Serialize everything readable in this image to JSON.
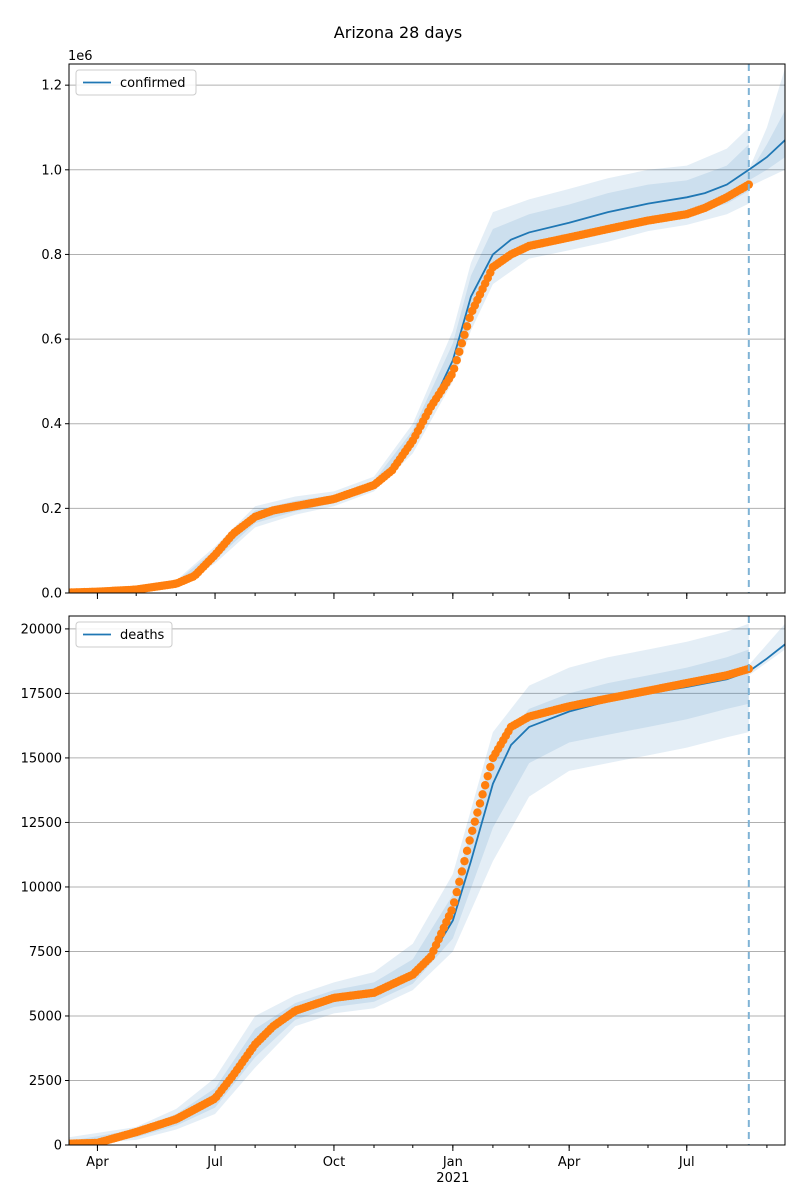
{
  "figure": {
    "title": "Arizona 28 days"
  },
  "colors": {
    "model": "#1f77b4",
    "observed": "#ff7f0e",
    "band": "#1f77b4",
    "grid": "#b0b0b0",
    "forecast_line": "#7fb3d5"
  },
  "x_axis": {
    "range": [
      "2020-03-10",
      "2021-09-15"
    ],
    "major_ticks": [
      {
        "date": "2020-04-01",
        "label": "Apr"
      },
      {
        "date": "2020-07-01",
        "label": "Jul"
      },
      {
        "date": "2020-10-01",
        "label": "Oct"
      },
      {
        "date": "2021-01-01",
        "label": "Jan"
      },
      {
        "date": "2021-04-01",
        "label": "Apr"
      },
      {
        "date": "2021-07-01",
        "label": "Jul"
      }
    ],
    "year_label": {
      "date": "2021-01-01",
      "label": "2021"
    },
    "forecast_start": "2021-08-18"
  },
  "chart_data": [
    {
      "type": "line",
      "title": "Arizona 28 days",
      "legend": "top-left",
      "grid": "y",
      "offset_label": "1e6",
      "ylim": [
        0,
        1.25
      ],
      "yticks": [
        0,
        0.2,
        0.4,
        0.6,
        0.8,
        1.0,
        1.2
      ],
      "ytick_labels": [
        "0.0",
        "0.2",
        "0.4",
        "0.6",
        "0.8",
        "1.0",
        "1.2"
      ],
      "series": [
        {
          "name": "confirmed",
          "role": "model",
          "x": [
            "2020-03-10",
            "2020-04-01",
            "2020-05-01",
            "2020-06-01",
            "2020-06-15",
            "2020-07-01",
            "2020-07-15",
            "2020-08-01",
            "2020-08-15",
            "2020-09-01",
            "2020-10-01",
            "2020-11-01",
            "2020-11-15",
            "2020-12-01",
            "2020-12-15",
            "2021-01-01",
            "2021-01-15",
            "2021-02-01",
            "2021-02-15",
            "2021-03-01",
            "2021-04-01",
            "2021-05-01",
            "2021-06-01",
            "2021-07-01",
            "2021-07-15",
            "2021-08-01",
            "2021-08-18",
            "2021-09-01",
            "2021-09-15"
          ],
          "y": [
            0.001,
            0.003,
            0.008,
            0.022,
            0.04,
            0.09,
            0.14,
            0.18,
            0.195,
            0.205,
            0.222,
            0.255,
            0.29,
            0.36,
            0.44,
            0.55,
            0.7,
            0.8,
            0.835,
            0.852,
            0.875,
            0.9,
            0.92,
            0.935,
            0.945,
            0.965,
            1.0,
            1.03,
            1.07
          ]
        },
        {
          "name": "",
          "role": "observed",
          "x": [
            "2020-03-10",
            "2020-04-01",
            "2020-05-01",
            "2020-06-01",
            "2020-06-15",
            "2020-07-01",
            "2020-07-15",
            "2020-08-01",
            "2020-08-15",
            "2020-09-01",
            "2020-10-01",
            "2020-11-01",
            "2020-11-15",
            "2020-12-01",
            "2020-12-15",
            "2021-01-01",
            "2021-01-15",
            "2021-02-01",
            "2021-02-15",
            "2021-03-01",
            "2021-04-01",
            "2021-05-01",
            "2021-06-01",
            "2021-07-01",
            "2021-07-15",
            "2021-08-01",
            "2021-08-18"
          ],
          "y": [
            0.001,
            0.003,
            0.008,
            0.022,
            0.04,
            0.09,
            0.14,
            0.18,
            0.195,
            0.205,
            0.222,
            0.255,
            0.29,
            0.36,
            0.44,
            0.52,
            0.66,
            0.77,
            0.8,
            0.82,
            0.84,
            0.86,
            0.88,
            0.895,
            0.91,
            0.935,
            0.965
          ]
        }
      ],
      "bands": [
        {
          "x": [
            "2020-06-01",
            "2020-07-01",
            "2020-08-01",
            "2020-09-01",
            "2020-10-01",
            "2020-11-01",
            "2020-12-01",
            "2021-01-01",
            "2021-01-15",
            "2021-02-01",
            "2021-03-01",
            "2021-04-01",
            "2021-05-01",
            "2021-06-01",
            "2021-07-01",
            "2021-08-01",
            "2021-08-18"
          ],
          "lower": [
            0.015,
            0.07,
            0.155,
            0.185,
            0.205,
            0.24,
            0.33,
            0.5,
            0.62,
            0.73,
            0.79,
            0.81,
            0.83,
            0.855,
            0.87,
            0.895,
            0.92
          ],
          "upper": [
            0.03,
            0.11,
            0.205,
            0.228,
            0.24,
            0.275,
            0.4,
            0.62,
            0.78,
            0.9,
            0.93,
            0.955,
            0.98,
            1.0,
            1.01,
            1.05,
            1.1
          ]
        },
        {
          "x": [
            "2020-06-01",
            "2020-07-01",
            "2020-08-01",
            "2020-09-01",
            "2020-10-01",
            "2020-11-01",
            "2020-12-01",
            "2021-01-01",
            "2021-01-15",
            "2021-02-01",
            "2021-03-01",
            "2021-04-01",
            "2021-05-01",
            "2021-06-01",
            "2021-07-01",
            "2021-08-01",
            "2021-08-18"
          ],
          "lower": [
            0.018,
            0.078,
            0.165,
            0.193,
            0.212,
            0.247,
            0.345,
            0.52,
            0.65,
            0.76,
            0.815,
            0.835,
            0.86,
            0.88,
            0.895,
            0.92,
            0.95
          ],
          "upper": [
            0.027,
            0.102,
            0.195,
            0.218,
            0.232,
            0.265,
            0.385,
            0.59,
            0.75,
            0.86,
            0.895,
            0.918,
            0.945,
            0.965,
            0.975,
            1.01,
            1.06
          ]
        }
      ],
      "forecast_bands": [
        {
          "x": [
            "2021-08-18",
            "2021-09-01",
            "2021-09-15"
          ],
          "lower": [
            0.96,
            0.98,
            1.0
          ],
          "upper": [
            1.0,
            1.1,
            1.24
          ]
        },
        {
          "x": [
            "2021-08-18",
            "2021-09-01",
            "2021-09-15"
          ],
          "lower": [
            0.975,
            1.0,
            1.03
          ],
          "upper": [
            0.99,
            1.06,
            1.14
          ]
        }
      ]
    },
    {
      "type": "line",
      "legend": "top-left",
      "grid": "y",
      "ylim": [
        0,
        20500
      ],
      "yticks": [
        0,
        2500,
        5000,
        7500,
        10000,
        12500,
        15000,
        17500,
        20000
      ],
      "ytick_labels": [
        "0",
        "2500",
        "5000",
        "7500",
        "10000",
        "12500",
        "15000",
        "17500",
        "20000"
      ],
      "series": [
        {
          "name": "deaths",
          "role": "model",
          "x": [
            "2020-03-10",
            "2020-04-01",
            "2020-05-01",
            "2020-06-01",
            "2020-07-01",
            "2020-07-15",
            "2020-08-01",
            "2020-08-15",
            "2020-09-01",
            "2020-10-01",
            "2020-11-01",
            "2020-12-01",
            "2020-12-15",
            "2021-01-01",
            "2021-01-15",
            "2021-02-01",
            "2021-02-15",
            "2021-03-01",
            "2021-04-01",
            "2021-05-01",
            "2021-06-01",
            "2021-07-01",
            "2021-08-01",
            "2021-08-18",
            "2021-09-01",
            "2021-09-15"
          ],
          "y": [
            50,
            80,
            500,
            1000,
            1800,
            2700,
            3900,
            4600,
            5200,
            5700,
            5900,
            6600,
            7300,
            8700,
            11000,
            14000,
            15500,
            16200,
            16800,
            17200,
            17500,
            17750,
            18050,
            18350,
            18850,
            19400
          ]
        },
        {
          "name": "",
          "role": "observed",
          "x": [
            "2020-03-10",
            "2020-04-01",
            "2020-05-01",
            "2020-06-01",
            "2020-07-01",
            "2020-07-15",
            "2020-08-01",
            "2020-08-15",
            "2020-09-01",
            "2020-10-01",
            "2020-11-01",
            "2020-12-01",
            "2020-12-15",
            "2021-01-01",
            "2021-01-15",
            "2021-02-01",
            "2021-02-15",
            "2021-03-01",
            "2021-04-01",
            "2021-05-01",
            "2021-06-01",
            "2021-07-01",
            "2021-08-01",
            "2021-08-18"
          ],
          "y": [
            50,
            80,
            500,
            1000,
            1800,
            2700,
            3900,
            4600,
            5200,
            5700,
            5900,
            6600,
            7300,
            9200,
            12000,
            15000,
            16200,
            16600,
            17000,
            17300,
            17600,
            17900,
            18200,
            18450
          ]
        }
      ],
      "bands": [
        {
          "x": [
            "2020-03-10",
            "2020-05-01",
            "2020-06-01",
            "2020-07-01",
            "2020-08-01",
            "2020-09-01",
            "2020-10-01",
            "2020-11-01",
            "2020-12-01",
            "2021-01-01",
            "2021-02-01",
            "2021-03-01",
            "2021-04-01",
            "2021-05-01",
            "2021-06-01",
            "2021-07-01",
            "2021-08-01",
            "2021-08-18"
          ],
          "lower": [
            0,
            200,
            600,
            1200,
            3000,
            4600,
            5100,
            5300,
            6000,
            7500,
            11000,
            13500,
            14500,
            14800,
            15100,
            15400,
            15800,
            16000
          ],
          "upper": [
            300,
            700,
            1400,
            2600,
            5000,
            5800,
            6300,
            6700,
            7800,
            10500,
            16000,
            17800,
            18500,
            18900,
            19200,
            19500,
            19900,
            20200
          ]
        },
        {
          "x": [
            "2020-03-10",
            "2020-05-01",
            "2020-06-01",
            "2020-07-01",
            "2020-08-01",
            "2020-09-01",
            "2020-10-01",
            "2020-11-01",
            "2020-12-01",
            "2021-01-01",
            "2021-02-01",
            "2021-03-01",
            "2021-04-01",
            "2021-05-01",
            "2021-06-01",
            "2021-07-01",
            "2021-08-01",
            "2021-08-18"
          ],
          "lower": [
            20,
            300,
            750,
            1450,
            3400,
            4850,
            5350,
            5550,
            6250,
            8000,
            12300,
            14800,
            15600,
            15900,
            16200,
            16500,
            16900,
            17100
          ],
          "upper": [
            150,
            600,
            1200,
            2200,
            4500,
            5500,
            6000,
            6300,
            7200,
            9700,
            15200,
            16900,
            17500,
            17900,
            18200,
            18500,
            18900,
            19200
          ]
        }
      ],
      "forecast_bands": [
        {
          "x": [
            "2021-08-18",
            "2021-09-01",
            "2021-09-15"
          ],
          "lower": [
            18200,
            18700,
            19200
          ],
          "upper": [
            18600,
            19400,
            20200
          ]
        }
      ]
    }
  ]
}
